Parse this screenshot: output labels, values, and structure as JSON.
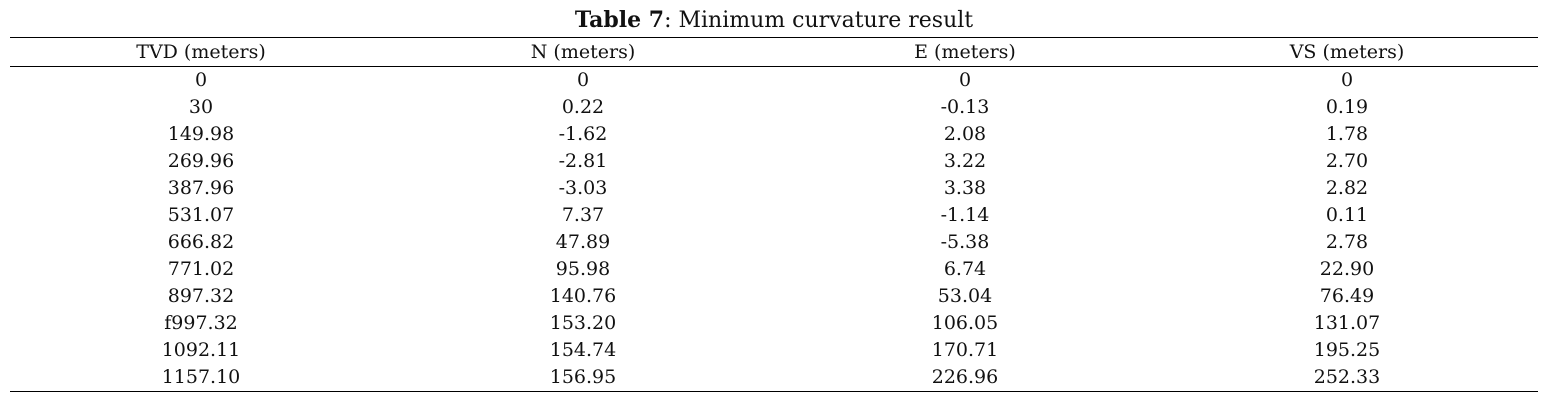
{
  "caption": {
    "label": "Table 7",
    "text": ": Minimum curvature result"
  },
  "table": {
    "columns": [
      "TVD (meters)",
      "N (meters)",
      "E (meters)",
      "VS (meters)"
    ],
    "rows": [
      [
        "0",
        "0",
        "0",
        "0"
      ],
      [
        "30",
        "0.22",
        "-0.13",
        "0.19"
      ],
      [
        "149.98",
        "-1.62",
        "2.08",
        "1.78"
      ],
      [
        "269.96",
        "-2.81",
        "3.22",
        "2.70"
      ],
      [
        "387.96",
        "-3.03",
        "3.38",
        "2.82"
      ],
      [
        "531.07",
        "7.37",
        "-1.14",
        "0.11"
      ],
      [
        "666.82",
        "47.89",
        "-5.38",
        "2.78"
      ],
      [
        "771.02",
        "95.98",
        "6.74",
        "22.90"
      ],
      [
        "897.32",
        "140.76",
        "53.04",
        "76.49"
      ],
      [
        "f997.32",
        "153.20",
        "106.05",
        "131.07"
      ],
      [
        "1092.11",
        "154.74",
        "170.71",
        "195.25"
      ],
      [
        "1157.10",
        "156.95",
        "226.96",
        "252.33"
      ]
    ]
  }
}
